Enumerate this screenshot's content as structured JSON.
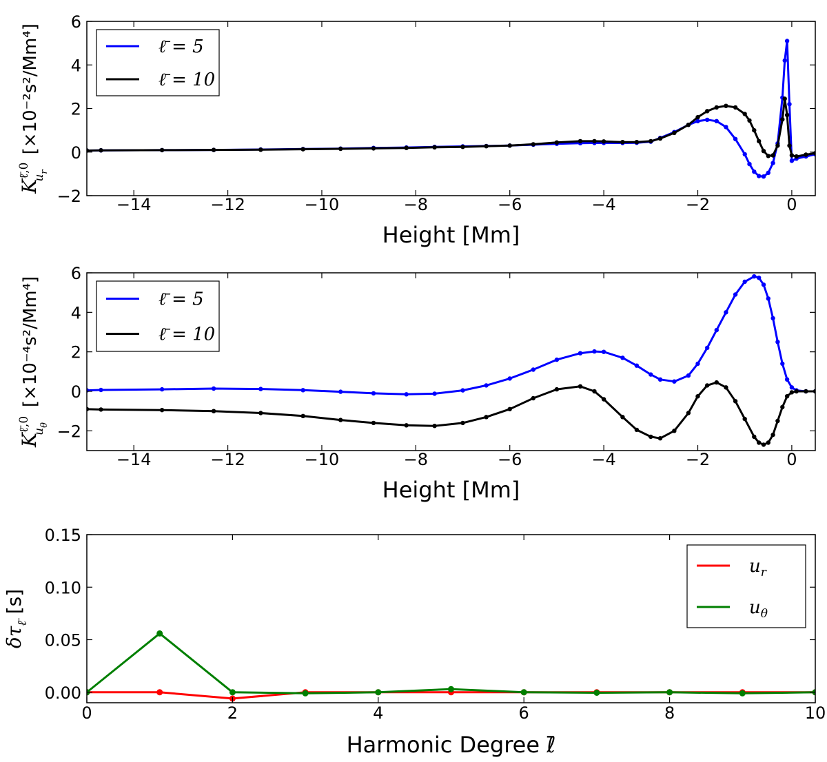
{
  "chart_data": [
    {
      "type": "line",
      "xlabel": "Height [Mm]",
      "ylabel_main": "K",
      "ylabel_sup": "ℓ̄,0",
      "ylabel_sub": "u",
      "ylabel_subsub": "r",
      "ylabel_units": "[×10⁻²s²/Mm⁴]",
      "xlim": [
        -15,
        0.5
      ],
      "ylim": [
        -2,
        6
      ],
      "xticks": [
        -14,
        -12,
        -10,
        -8,
        -6,
        -4,
        -2,
        0
      ],
      "xtick_labels": [
        "−14",
        "−12",
        "−10",
        "−8",
        "−6",
        "−4",
        "−2",
        "0"
      ],
      "yticks": [
        -2,
        0,
        2,
        4,
        6
      ],
      "ytick_labels": [
        "−2",
        "0",
        "2",
        "4",
        "6"
      ],
      "legend_position": "upper-left",
      "series": [
        {
          "name": "ℓ̄ = 5",
          "color": "#0000ff",
          "x": [
            -15,
            -14.7,
            -13.4,
            -12.3,
            -11.3,
            -10.4,
            -9.6,
            -8.9,
            -8.2,
            -7.6,
            -7.0,
            -6.5,
            -6.0,
            -5.5,
            -5.0,
            -4.5,
            -4.2,
            -4.0,
            -3.6,
            -3.3,
            -3.0,
            -2.8,
            -2.5,
            -2.2,
            -2.0,
            -1.8,
            -1.6,
            -1.4,
            -1.2,
            -1.0,
            -0.9,
            -0.8,
            -0.7,
            -0.6,
            -0.5,
            -0.4,
            -0.3,
            -0.2,
            -0.15,
            -0.1,
            -0.05,
            0.0,
            0.1,
            0.3,
            0.5
          ],
          "y": [
            0.07,
            0.08,
            0.09,
            0.1,
            0.12,
            0.14,
            0.16,
            0.19,
            0.21,
            0.24,
            0.26,
            0.28,
            0.3,
            0.34,
            0.38,
            0.41,
            0.42,
            0.42,
            0.42,
            0.43,
            0.48,
            0.65,
            0.92,
            1.25,
            1.42,
            1.48,
            1.42,
            1.15,
            0.6,
            -0.1,
            -0.55,
            -0.9,
            -1.1,
            -1.12,
            -0.95,
            -0.5,
            0.4,
            2.5,
            4.2,
            5.1,
            2.2,
            -0.4,
            -0.3,
            -0.2,
            -0.1
          ]
        },
        {
          "name": "ℓ̄ = 10",
          "color": "#000000",
          "x": [
            -15,
            -14.7,
            -13.4,
            -12.3,
            -11.3,
            -10.4,
            -9.6,
            -8.9,
            -8.2,
            -7.6,
            -7.0,
            -6.5,
            -6.0,
            -5.5,
            -5.0,
            -4.5,
            -4.2,
            -4.0,
            -3.6,
            -3.3,
            -3.0,
            -2.8,
            -2.5,
            -2.2,
            -2.0,
            -1.8,
            -1.6,
            -1.4,
            -1.2,
            -1.0,
            -0.9,
            -0.8,
            -0.7,
            -0.6,
            -0.5,
            -0.4,
            -0.3,
            -0.2,
            -0.15,
            -0.1,
            -0.05,
            0.0,
            0.1,
            0.3,
            0.5
          ],
          "y": [
            0.07,
            0.08,
            0.09,
            0.1,
            0.11,
            0.13,
            0.15,
            0.17,
            0.19,
            0.22,
            0.24,
            0.27,
            0.3,
            0.36,
            0.44,
            0.5,
            0.5,
            0.49,
            0.46,
            0.46,
            0.5,
            0.62,
            0.88,
            1.25,
            1.6,
            1.88,
            2.05,
            2.12,
            2.05,
            1.75,
            1.45,
            1.0,
            0.5,
            0.05,
            -0.18,
            -0.15,
            0.3,
            1.5,
            2.45,
            1.7,
            0.3,
            -0.15,
            -0.2,
            -0.12,
            -0.05
          ]
        }
      ]
    },
    {
      "type": "line",
      "xlabel": "Height [Mm]",
      "ylabel_main": "K",
      "ylabel_sup": "ℓ̄,0",
      "ylabel_sub": "u",
      "ylabel_subsub": "θ",
      "ylabel_units": "[×10⁻⁴s²/Mm⁴]",
      "xlim": [
        -15,
        0.5
      ],
      "ylim": [
        -3,
        6
      ],
      "xticks": [
        -14,
        -12,
        -10,
        -8,
        -6,
        -4,
        -2,
        0
      ],
      "xtick_labels": [
        "−14",
        "−12",
        "−10",
        "−8",
        "−6",
        "−4",
        "−2",
        "0"
      ],
      "yticks": [
        -2,
        0,
        2,
        4,
        6
      ],
      "ytick_labels": [
        "−2",
        "0",
        "2",
        "4",
        "6"
      ],
      "legend_position": "upper-left",
      "series": [
        {
          "name": "ℓ̄ = 5",
          "color": "#0000ff",
          "x": [
            -15,
            -14.7,
            -13.4,
            -12.3,
            -11.3,
            -10.4,
            -9.6,
            -8.9,
            -8.2,
            -7.6,
            -7.0,
            -6.5,
            -6.0,
            -5.5,
            -5.0,
            -4.5,
            -4.2,
            -4.0,
            -3.6,
            -3.3,
            -3.0,
            -2.8,
            -2.5,
            -2.2,
            -2.0,
            -1.8,
            -1.6,
            -1.4,
            -1.2,
            -1.0,
            -0.8,
            -0.7,
            -0.6,
            -0.5,
            -0.4,
            -0.3,
            -0.2,
            -0.1,
            0.0,
            0.1,
            0.3,
            0.5
          ],
          "y": [
            0.05,
            0.07,
            0.1,
            0.14,
            0.12,
            0.06,
            -0.02,
            -0.1,
            -0.15,
            -0.12,
            0.05,
            0.3,
            0.65,
            1.1,
            1.6,
            1.93,
            2.02,
            2.0,
            1.7,
            1.3,
            0.85,
            0.6,
            0.5,
            0.8,
            1.4,
            2.2,
            3.1,
            4.0,
            4.9,
            5.55,
            5.82,
            5.75,
            5.4,
            4.7,
            3.7,
            2.5,
            1.4,
            0.6,
            0.2,
            0.05,
            0.0,
            0.0
          ]
        },
        {
          "name": "ℓ̄ = 10",
          "color": "#000000",
          "x": [
            -15,
            -14.7,
            -13.4,
            -12.3,
            -11.3,
            -10.4,
            -9.6,
            -8.9,
            -8.2,
            -7.6,
            -7.0,
            -6.5,
            -6.0,
            -5.5,
            -5.0,
            -4.5,
            -4.2,
            -4.0,
            -3.6,
            -3.3,
            -3.0,
            -2.8,
            -2.5,
            -2.2,
            -2.0,
            -1.8,
            -1.6,
            -1.4,
            -1.2,
            -1.0,
            -0.8,
            -0.7,
            -0.6,
            -0.5,
            -0.4,
            -0.3,
            -0.2,
            -0.1,
            0.0,
            0.1,
            0.3,
            0.5
          ],
          "y": [
            -0.9,
            -0.92,
            -0.95,
            -1.0,
            -1.1,
            -1.25,
            -1.45,
            -1.6,
            -1.72,
            -1.75,
            -1.6,
            -1.3,
            -0.9,
            -0.35,
            0.1,
            0.25,
            0.0,
            -0.4,
            -1.3,
            -1.95,
            -2.3,
            -2.38,
            -2.0,
            -1.1,
            -0.25,
            0.3,
            0.45,
            0.2,
            -0.5,
            -1.4,
            -2.3,
            -2.6,
            -2.7,
            -2.6,
            -2.2,
            -1.5,
            -0.8,
            -0.25,
            -0.05,
            0.0,
            0.0,
            0.0
          ]
        }
      ]
    },
    {
      "type": "line",
      "xlabel": "Harmonic Degree ℓ̄",
      "ylabel_main": "δτ",
      "ylabel_sub": "ℓ̄",
      "ylabel_units": "[s]",
      "xlim": [
        0,
        10
      ],
      "ylim": [
        -0.01,
        0.15
      ],
      "xticks": [
        0,
        2,
        4,
        6,
        8,
        10
      ],
      "xtick_labels": [
        "0",
        "2",
        "4",
        "6",
        "8",
        "10"
      ],
      "yticks": [
        0.0,
        0.05,
        0.1,
        0.15
      ],
      "ytick_labels": [
        "0.00",
        "0.05",
        "0.10",
        "0.15"
      ],
      "legend_position": "upper-right",
      "series": [
        {
          "name": "u_r",
          "label_main": "u",
          "label_sub": "r",
          "color": "#ff0000",
          "x": [
            0,
            1,
            2,
            3,
            4,
            5,
            6,
            7,
            8,
            9,
            10
          ],
          "y": [
            0.0,
            0.0,
            -0.006,
            0.0,
            0.0,
            0.0,
            0.0,
            0.0,
            0.0,
            0.0,
            0.0
          ]
        },
        {
          "name": "u_θ",
          "label_main": "u",
          "label_sub": "θ",
          "color": "#007f00",
          "x": [
            0,
            1,
            2,
            3,
            4,
            5,
            6,
            7,
            8,
            9,
            10
          ],
          "y": [
            0.0,
            0.056,
            0.0,
            -0.001,
            0.0,
            0.003,
            0.0,
            -0.0005,
            0.0,
            -0.001,
            0.0
          ]
        }
      ]
    }
  ]
}
